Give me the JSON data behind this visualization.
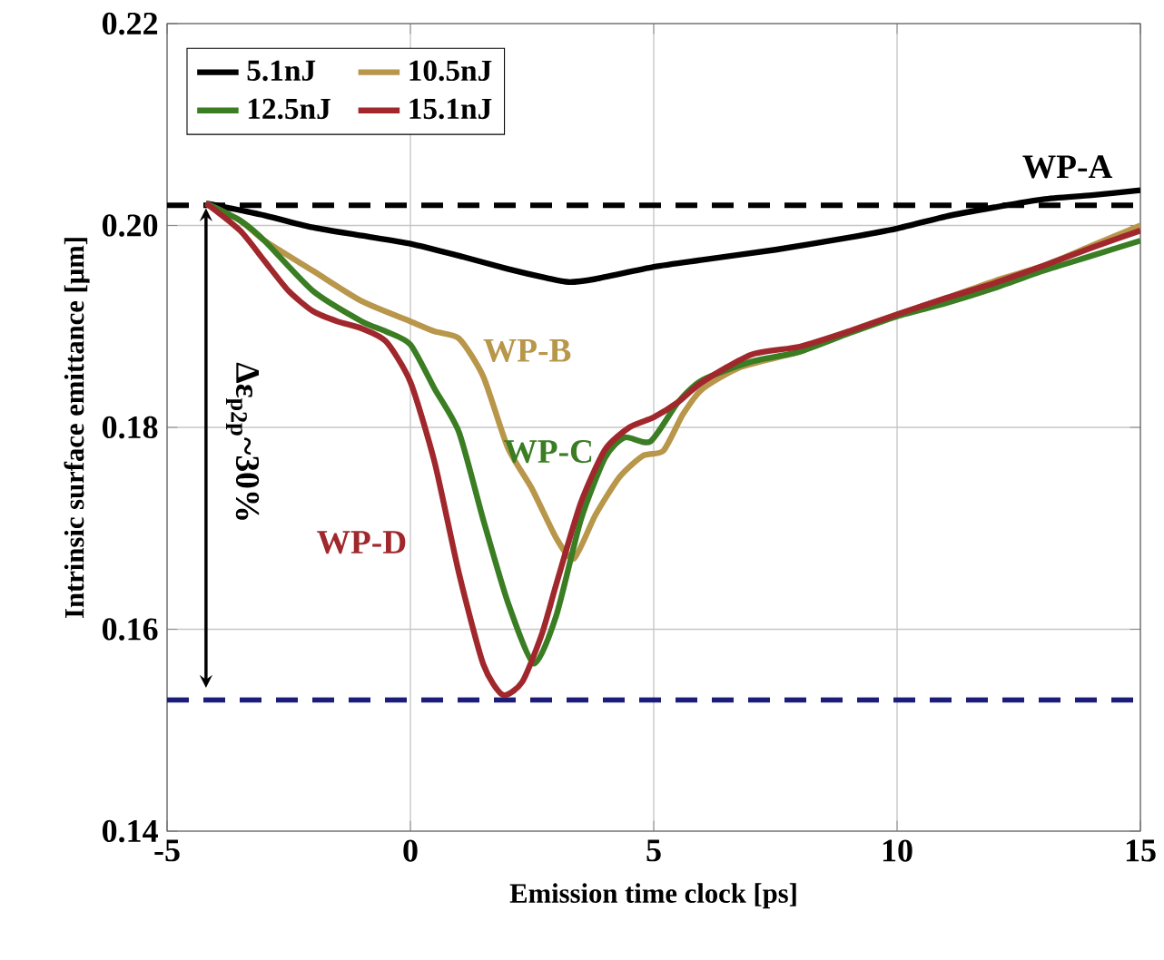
{
  "chart_data": {
    "type": "line",
    "xlabel": "Emission time clock [ps]",
    "ylabel": "Intrinsic surface emittance [μm]",
    "xlim": [
      -5,
      15
    ],
    "ylim": [
      0.14,
      0.22
    ],
    "xticks": [
      -5,
      0,
      5,
      10,
      15
    ],
    "yticks": [
      {
        "value": 0.14,
        "label": "0.14"
      },
      {
        "value": 0.16,
        "label": "0.16"
      },
      {
        "value": 0.18,
        "label": "0.18"
      },
      {
        "value": 0.2,
        "label": "0.20"
      },
      {
        "value": 0.22,
        "label": "0.22"
      }
    ],
    "grid": true,
    "legend": "top left",
    "marker": "none",
    "line_style": "solid",
    "series": [
      {
        "name": "5.1nJ",
        "color": "#000000",
        "x": [
          -4.2,
          -3,
          -2,
          -1,
          0,
          1,
          2,
          2.8,
          3.25,
          3.8,
          5,
          6,
          7.5,
          9,
          10,
          11,
          12,
          13,
          14,
          15
        ],
        "values": [
          0.2022,
          0.201,
          0.1998,
          0.199,
          0.1982,
          0.197,
          0.1957,
          0.1948,
          0.1944,
          0.1947,
          0.1959,
          0.1966,
          0.1976,
          0.1988,
          0.1997,
          0.2009,
          0.2018,
          0.2026,
          0.203,
          0.2035
        ]
      },
      {
        "name": "10.5nJ",
        "color": "#b8964a",
        "x": [
          -4.2,
          -3.5,
          -3,
          -2,
          -1,
          0,
          0.5,
          1,
          1.5,
          2,
          2.5,
          3,
          3.36,
          3.8,
          4.3,
          4.78,
          5.2,
          5.6,
          6,
          6.8,
          8,
          9,
          10,
          11,
          12,
          13,
          14,
          15
        ],
        "values": [
          0.2022,
          0.2005,
          0.1985,
          0.1955,
          0.1925,
          0.1905,
          0.1895,
          0.1888,
          0.185,
          0.178,
          0.1739,
          0.169,
          0.167,
          0.1713,
          0.1751,
          0.1772,
          0.1777,
          0.1813,
          0.1838,
          0.186,
          0.1875,
          0.1895,
          0.1912,
          0.1928,
          0.1945,
          0.196,
          0.198,
          0.2
        ]
      },
      {
        "name": "12.5nJ",
        "color": "#3a7d23",
        "x": [
          -4.2,
          -3.5,
          -3,
          -2,
          -1,
          -0.5,
          0,
          0.5,
          1,
          1.5,
          2,
          2.54,
          3,
          3.5,
          4,
          4.4,
          4.93,
          5.5,
          6,
          7,
          8,
          9,
          10,
          11,
          12,
          13,
          14,
          15
        ],
        "values": [
          0.2022,
          0.2005,
          0.1985,
          0.1935,
          0.1905,
          0.1895,
          0.1882,
          0.1838,
          0.1795,
          0.1708,
          0.1627,
          0.1566,
          0.1614,
          0.1708,
          0.177,
          0.179,
          0.1786,
          0.1825,
          0.1847,
          0.1865,
          0.1875,
          0.1893,
          0.191,
          0.1923,
          0.1938,
          0.1955,
          0.197,
          0.1985
        ]
      },
      {
        "name": "15.1nJ",
        "color": "#a0282c",
        "x": [
          -4.2,
          -3.5,
          -3,
          -2.5,
          -2,
          -1.5,
          -1,
          -0.5,
          0,
          0.5,
          1,
          1.5,
          1.9,
          2.3,
          2.7,
          3,
          3.5,
          4,
          4.5,
          5,
          5.5,
          6,
          7,
          8,
          9,
          10,
          11,
          12,
          13,
          14,
          15
        ],
        "values": [
          0.2022,
          0.1995,
          0.1965,
          0.1935,
          0.1915,
          0.1905,
          0.1898,
          0.1885,
          0.1845,
          0.1765,
          0.1655,
          0.1565,
          0.1535,
          0.1548,
          0.1595,
          0.1645,
          0.1725,
          0.1778,
          0.18,
          0.181,
          0.1825,
          0.1845,
          0.1872,
          0.188,
          0.1895,
          0.1912,
          0.1928,
          0.1943,
          0.196,
          0.1978,
          0.1995
        ]
      }
    ],
    "ref_lines": [
      {
        "axis": "y",
        "value": 0.202,
        "color": "#000000",
        "line_style": "dashed"
      },
      {
        "axis": "y",
        "value": 0.153,
        "color": "#1c1c7a",
        "line_style": "dashed"
      }
    ],
    "annotations": [
      "WP-A",
      "WP-B",
      "WP-C",
      "WP-D",
      "Δε$_{p2p}$~30%"
    ]
  }
}
